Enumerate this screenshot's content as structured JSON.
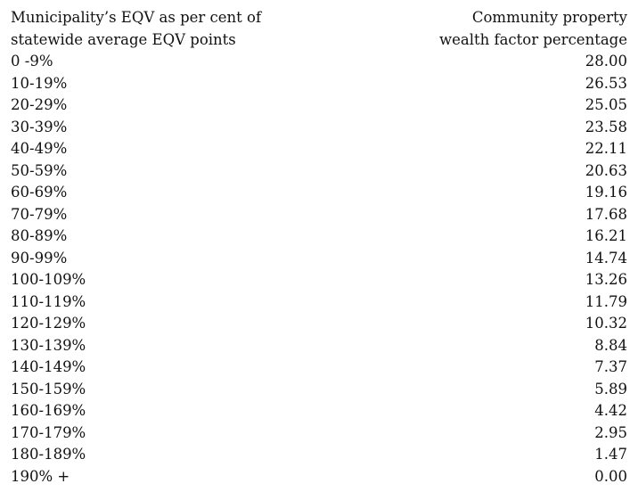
{
  "table": {
    "header": {
      "col1": [
        "Municipality’s EQV as per cent of",
        "statewide average EQV points"
      ],
      "col2": [
        "Community property",
        "wealth factor percentage"
      ]
    },
    "rows": [
      [
        "0 -9%",
        "28.00"
      ],
      [
        "10-19%",
        "26.53"
      ],
      [
        "20-29%",
        "25.05"
      ],
      [
        "30-39%",
        "23.58"
      ],
      [
        "40-49%",
        "22.11"
      ],
      [
        "50-59%",
        "20.63"
      ],
      [
        "60-69%",
        "19.16"
      ],
      [
        "70-79%",
        "17.68"
      ],
      [
        "80-89%",
        "16.21"
      ],
      [
        "90-99%",
        "14.74"
      ],
      [
        "100-109%",
        "13.26"
      ],
      [
        "110-119%",
        "11.79"
      ],
      [
        "120-129%",
        "10.32"
      ],
      [
        "130-139%",
        "8.84"
      ],
      [
        "140-149%",
        "7.37"
      ],
      [
        "150-159%",
        "5.89"
      ],
      [
        "160-169%",
        "4.42"
      ],
      [
        "170-179%",
        "2.95"
      ],
      [
        "180-189%",
        "1.47"
      ],
      [
        "190% +",
        "0.00"
      ]
    ]
  }
}
